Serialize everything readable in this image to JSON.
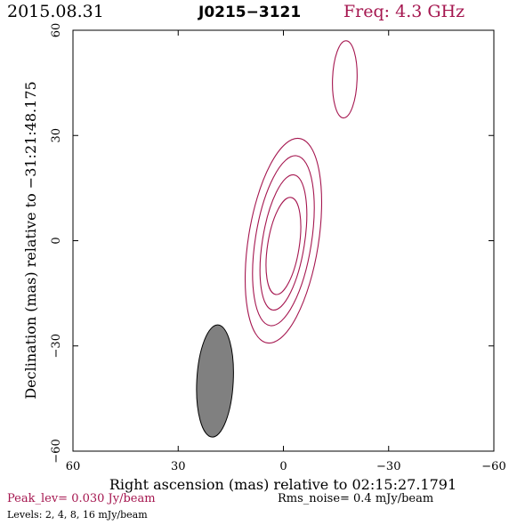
{
  "header": {
    "date": "2015.08.31",
    "source": "J0215−3121",
    "freq": "Freq: 4.3 GHz"
  },
  "footer": {
    "peak": "Peak_lev=  0.030 Jy/beam",
    "rms": "Rms_noise=   0.4 mJy/beam",
    "levels": "Levels:   2,   4,   8,  16 mJy/beam"
  },
  "colors": {
    "contour": "#a5164f",
    "beam_fill": "#808080",
    "accent_text": "#a5164f"
  },
  "chart_data": {
    "type": "contour",
    "xlabel": "Right ascension (mas) relative to 02:15:27.1791",
    "ylabel": "Declination (mas) relative to −31:21:48.175",
    "xlim": [
      60,
      -60
    ],
    "ylim": [
      -60,
      60
    ],
    "xticks": [
      60,
      30,
      0,
      -30,
      -60
    ],
    "yticks": [
      60,
      30,
      0,
      -30,
      -60
    ],
    "xtick_labels": [
      "60",
      "30",
      "0",
      "−30",
      "−60"
    ],
    "ytick_labels": [
      "60",
      "30",
      "0",
      "−30",
      "−60"
    ],
    "levels_mJy": [
      2,
      4,
      8,
      16
    ],
    "peak_Jy_per_beam": 0.03,
    "rms_mJy_per_beam": 0.4,
    "contours": [
      {
        "component": "core",
        "level_mJy": 2,
        "center": [
          0,
          0
        ],
        "half_width_mas": 10.0,
        "half_height_mas": 29.5,
        "angle_deg": -9
      },
      {
        "component": "core",
        "level_mJy": 4,
        "center": [
          0,
          0
        ],
        "half_width_mas": 8.0,
        "half_height_mas": 24.5,
        "angle_deg": -9
      },
      {
        "component": "core",
        "level_mJy": 8,
        "center": [
          0,
          -0.5
        ],
        "half_width_mas": 6.0,
        "half_height_mas": 19.5,
        "angle_deg": -9
      },
      {
        "component": "core",
        "level_mJy": 16,
        "center": [
          0,
          -1.5
        ],
        "half_width_mas": 4.5,
        "half_height_mas": 14.0,
        "angle_deg": -9
      },
      {
        "component": "jet-knot",
        "level_mJy": 2,
        "center": [
          -17.5,
          46
        ],
        "half_width_mas": 3.5,
        "half_height_mas": 11.0,
        "angle_deg": -2
      }
    ],
    "beam": {
      "center": [
        19.5,
        -40
      ],
      "half_width_mas": 5.2,
      "half_height_mas": 16.0,
      "angle_deg": -3
    }
  }
}
